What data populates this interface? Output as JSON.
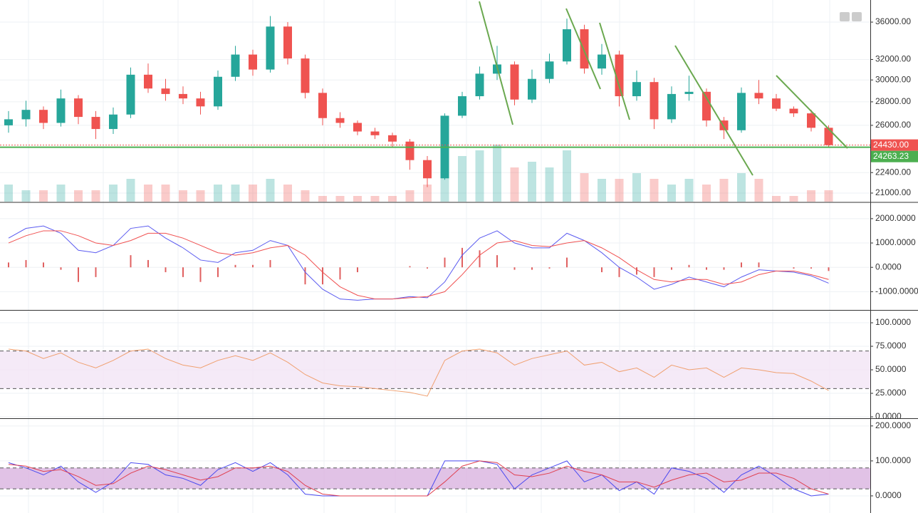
{
  "chart_data": [
    {
      "type": "candlestick",
      "log": true,
      "grid": true,
      "up_color": "#26a69a",
      "down_color": "#ef5350",
      "ylim": [
        20440,
        38600
      ],
      "yticks": [
        {
          "value": 36000,
          "label": "36000.00"
        },
        {
          "value": 32000,
          "label": "32000.00"
        },
        {
          "value": 30000,
          "label": "30000.00"
        },
        {
          "value": 28000,
          "label": "28000.00"
        },
        {
          "value": 26000,
          "label": "26000.00"
        },
        {
          "value": 22400,
          "label": "22400.00"
        },
        {
          "value": 21000,
          "label": "21000.00"
        }
      ],
      "open": [
        26000,
        26500,
        27300,
        26200,
        28300,
        26700,
        25700,
        26900,
        30500,
        29200,
        28700,
        28300,
        27600,
        30300,
        32500,
        31000,
        35500,
        32100,
        28800,
        26600,
        26200,
        25500,
        25200,
        24700,
        23300,
        22000,
        26800,
        28500,
        30600,
        31500,
        28200,
        30100,
        31800,
        35200,
        31100,
        32500,
        28500,
        29800,
        26500,
        28700,
        28900,
        26400,
        25600,
        28800,
        28300,
        27400,
        27000,
        25800
      ],
      "high": [
        27200,
        28100,
        27600,
        29100,
        28600,
        27200,
        27500,
        31200,
        31600,
        30100,
        29400,
        28900,
        30900,
        33400,
        33000,
        36700,
        36000,
        32500,
        29200,
        27100,
        26400,
        25800,
        25400,
        24900,
        23600,
        27000,
        28900,
        31300,
        33400,
        31800,
        31000,
        32600,
        36400,
        35700,
        33600,
        32900,
        30900,
        30200,
        29400,
        30400,
        29200,
        26700,
        29300,
        30000,
        28700,
        27600,
        27300,
        26000
      ],
      "low": [
        25400,
        25900,
        25700,
        25900,
        26100,
        24900,
        25300,
        26600,
        28800,
        28100,
        27800,
        26900,
        27300,
        29900,
        30400,
        30700,
        31500,
        28300,
        26000,
        25800,
        25200,
        24900,
        24300,
        22600,
        21400,
        21900,
        26600,
        28200,
        30000,
        27700,
        27900,
        29700,
        31500,
        30600,
        30500,
        27600,
        28100,
        25700,
        26200,
        28100,
        25900,
        24900,
        25400,
        27800,
        27200,
        26700,
        25500,
        24300
      ],
      "close": [
        26500,
        27300,
        26200,
        28300,
        26700,
        25700,
        26900,
        30500,
        29200,
        28700,
        28300,
        27600,
        30300,
        32500,
        31000,
        35500,
        32100,
        28800,
        26600,
        26200,
        25500,
        25200,
        24700,
        23300,
        22000,
        26800,
        28500,
        30600,
        31500,
        28200,
        30100,
        31800,
        35200,
        31100,
        32500,
        28500,
        29800,
        26500,
        28700,
        28900,
        26400,
        25600,
        28800,
        28300,
        27400,
        27000,
        25800,
        24430
      ],
      "volume": [
        3,
        2,
        2,
        3,
        2,
        2,
        3,
        4,
        3,
        3,
        2,
        2,
        3,
        3,
        3,
        4,
        3,
        2,
        1,
        1,
        1,
        1,
        1,
        2,
        3,
        5,
        8,
        9,
        10,
        6,
        7,
        6,
        9,
        5,
        4,
        4,
        5,
        4,
        3,
        4,
        3,
        4,
        5,
        4,
        1,
        1,
        2,
        2
      ],
      "price_tags": [
        {
          "value": 24430,
          "label": "24430.00",
          "color": "#ef5350"
        },
        {
          "value": 24263.23,
          "label": "24263.23",
          "color": "#4caf50"
        }
      ]
    },
    {
      "type": "macd",
      "grid": true,
      "macd_color": "#5b5bf0",
      "signal_color": "#f05050",
      "histogram_color": "#e06060",
      "ylim": [
        -1750,
        2640
      ],
      "yticks": [
        {
          "value": 2000,
          "label": "2000.0000"
        },
        {
          "value": 1000,
          "label": "1000.0000"
        },
        {
          "value": 0,
          "label": "0.0000"
        },
        {
          "value": -1000,
          "label": "-1000.0000"
        }
      ],
      "macd": [
        1200,
        1600,
        1700,
        1400,
        700,
        600,
        900,
        1600,
        1700,
        1200,
        800,
        300,
        200,
        600,
        700,
        1100,
        900,
        -200,
        -900,
        -1300,
        -1350,
        -1300,
        -1300,
        -1200,
        -1250,
        -600,
        500,
        1200,
        1500,
        1000,
        800,
        800,
        1400,
        1100,
        600,
        0,
        -400,
        -900,
        -700,
        -400,
        -600,
        -800,
        -400,
        -100,
        -150,
        -200,
        -350,
        -650
      ],
      "signal": [
        1000,
        1300,
        1500,
        1500,
        1300,
        1000,
        900,
        1100,
        1400,
        1400,
        1200,
        900,
        600,
        500,
        600,
        800,
        900,
        500,
        -200,
        -800,
        -1150,
        -1300,
        -1300,
        -1250,
        -1200,
        -1000,
        -300,
        500,
        1000,
        1100,
        900,
        850,
        1000,
        1100,
        800,
        400,
        -100,
        -500,
        -600,
        -500,
        -500,
        -700,
        -600,
        -300,
        -150,
        -150,
        -300,
        -500
      ],
      "histogram": [
        200,
        300,
        200,
        -100,
        -600,
        -400,
        0,
        500,
        300,
        -200,
        -400,
        -600,
        -400,
        100,
        100,
        300,
        0,
        -700,
        -700,
        -500,
        -200,
        0,
        0,
        50,
        -50,
        400,
        800,
        700,
        500,
        -100,
        -100,
        -50,
        400,
        0,
        -200,
        -400,
        -300,
        -400,
        -100,
        100,
        -100,
        -100,
        200,
        200,
        0,
        -50,
        -50,
        -150
      ]
    },
    {
      "type": "rsi",
      "grid": true,
      "color": "#f0a070",
      "band": [
        30,
        70
      ],
      "band_color": "#f3e5f5",
      "ylim": [
        -1.5,
        112.9
      ],
      "yticks": [
        {
          "value": 100,
          "label": "100.0000"
        },
        {
          "value": 75,
          "label": "75.0000"
        },
        {
          "value": 50,
          "label": "50.0000"
        },
        {
          "value": 25,
          "label": "25.0000"
        },
        {
          "value": 0,
          "label": "0.0000"
        }
      ],
      "values": [
        72,
        70,
        62,
        68,
        58,
        52,
        60,
        70,
        72,
        62,
        55,
        52,
        60,
        65,
        60,
        68,
        58,
        45,
        36,
        33,
        32,
        30,
        28,
        26,
        22,
        60,
        70,
        72,
        68,
        55,
        62,
        66,
        70,
        55,
        58,
        48,
        52,
        42,
        55,
        50,
        52,
        42,
        52,
        50,
        47,
        46,
        38,
        28
      ]
    },
    {
      "type": "stochastic",
      "grid": true,
      "k_color": "#4a4af0",
      "d_color": "#e04050",
      "band": [
        20,
        80
      ],
      "band_color": "#d9b3e0",
      "ylim": [
        -49,
        220
      ],
      "yticks": [
        {
          "value": 200,
          "label": "200.0000"
        },
        {
          "value": 100,
          "label": "100.0000"
        },
        {
          "value": 0,
          "label": "0.0000"
        }
      ],
      "k": [
        95,
        80,
        60,
        85,
        40,
        10,
        40,
        95,
        90,
        60,
        50,
        30,
        75,
        95,
        70,
        95,
        60,
        5,
        0,
        0,
        0,
        0,
        0,
        0,
        0,
        100,
        100,
        100,
        90,
        20,
        60,
        80,
        100,
        40,
        60,
        15,
        40,
        5,
        80,
        70,
        50,
        10,
        60,
        85,
        55,
        20,
        0,
        5
      ],
      "d": [
        90,
        85,
        70,
        75,
        55,
        30,
        35,
        65,
        85,
        75,
        60,
        45,
        55,
        80,
        80,
        85,
        70,
        30,
        5,
        0,
        0,
        0,
        0,
        0,
        0,
        40,
        85,
        100,
        95,
        60,
        55,
        65,
        85,
        70,
        60,
        40,
        40,
        25,
        45,
        60,
        65,
        40,
        45,
        65,
        65,
        50,
        20,
        5
      ]
    }
  ]
}
